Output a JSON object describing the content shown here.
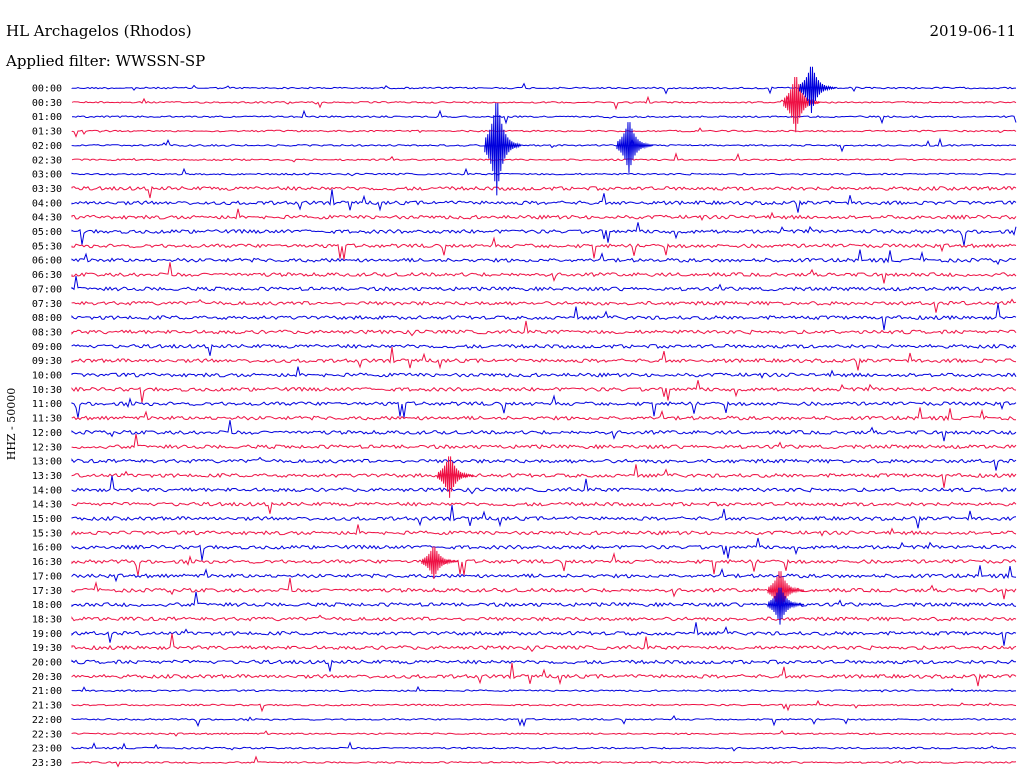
{
  "header": {
    "station": "HL Archagelos (Rhodos)",
    "date": "2019-06-11",
    "filter": "Applied filter: WWSSN-SP"
  },
  "colors": {
    "even_trace": "#0000dd",
    "odd_trace": "#ee1144"
  },
  "chart_data": {
    "type": "helicorder",
    "ylabel": "HHZ - 50000",
    "rows": [
      "00:00",
      "00:30",
      "01:00",
      "01:30",
      "02:00",
      "02:30",
      "03:00",
      "03:30",
      "04:00",
      "04:30",
      "05:00",
      "05:30",
      "06:00",
      "06:30",
      "07:00",
      "07:30",
      "08:00",
      "08:30",
      "09:00",
      "09:30",
      "10:00",
      "10:30",
      "11:00",
      "11:30",
      "12:00",
      "12:30",
      "13:00",
      "13:30",
      "14:00",
      "14:30",
      "15:00",
      "15:30",
      "16:00",
      "16:30",
      "17:00",
      "17:30",
      "18:00",
      "18:30",
      "19:00",
      "19:30",
      "20:00",
      "20:30",
      "21:00",
      "21:30",
      "22:00",
      "22:30",
      "23:00",
      "23:30"
    ],
    "trace_colors_alternate": [
      "blue",
      "red"
    ],
    "notable_events": [
      {
        "row": 4,
        "minute": 13.5,
        "amplitude": 1.0
      },
      {
        "row": 1,
        "minute": 23.0,
        "amplitude": 0.6
      },
      {
        "row": 0,
        "minute": 23.5,
        "amplitude": 0.5
      },
      {
        "row": 4,
        "minute": 17.7,
        "amplitude": 0.55
      },
      {
        "row": 27,
        "minute": 12.0,
        "amplitude": 0.45
      },
      {
        "row": 33,
        "minute": 11.5,
        "amplitude": 0.35
      },
      {
        "row": 35,
        "minute": 22.5,
        "amplitude": 0.45
      },
      {
        "row": 36,
        "minute": 22.5,
        "amplitude": 0.4
      }
    ]
  }
}
